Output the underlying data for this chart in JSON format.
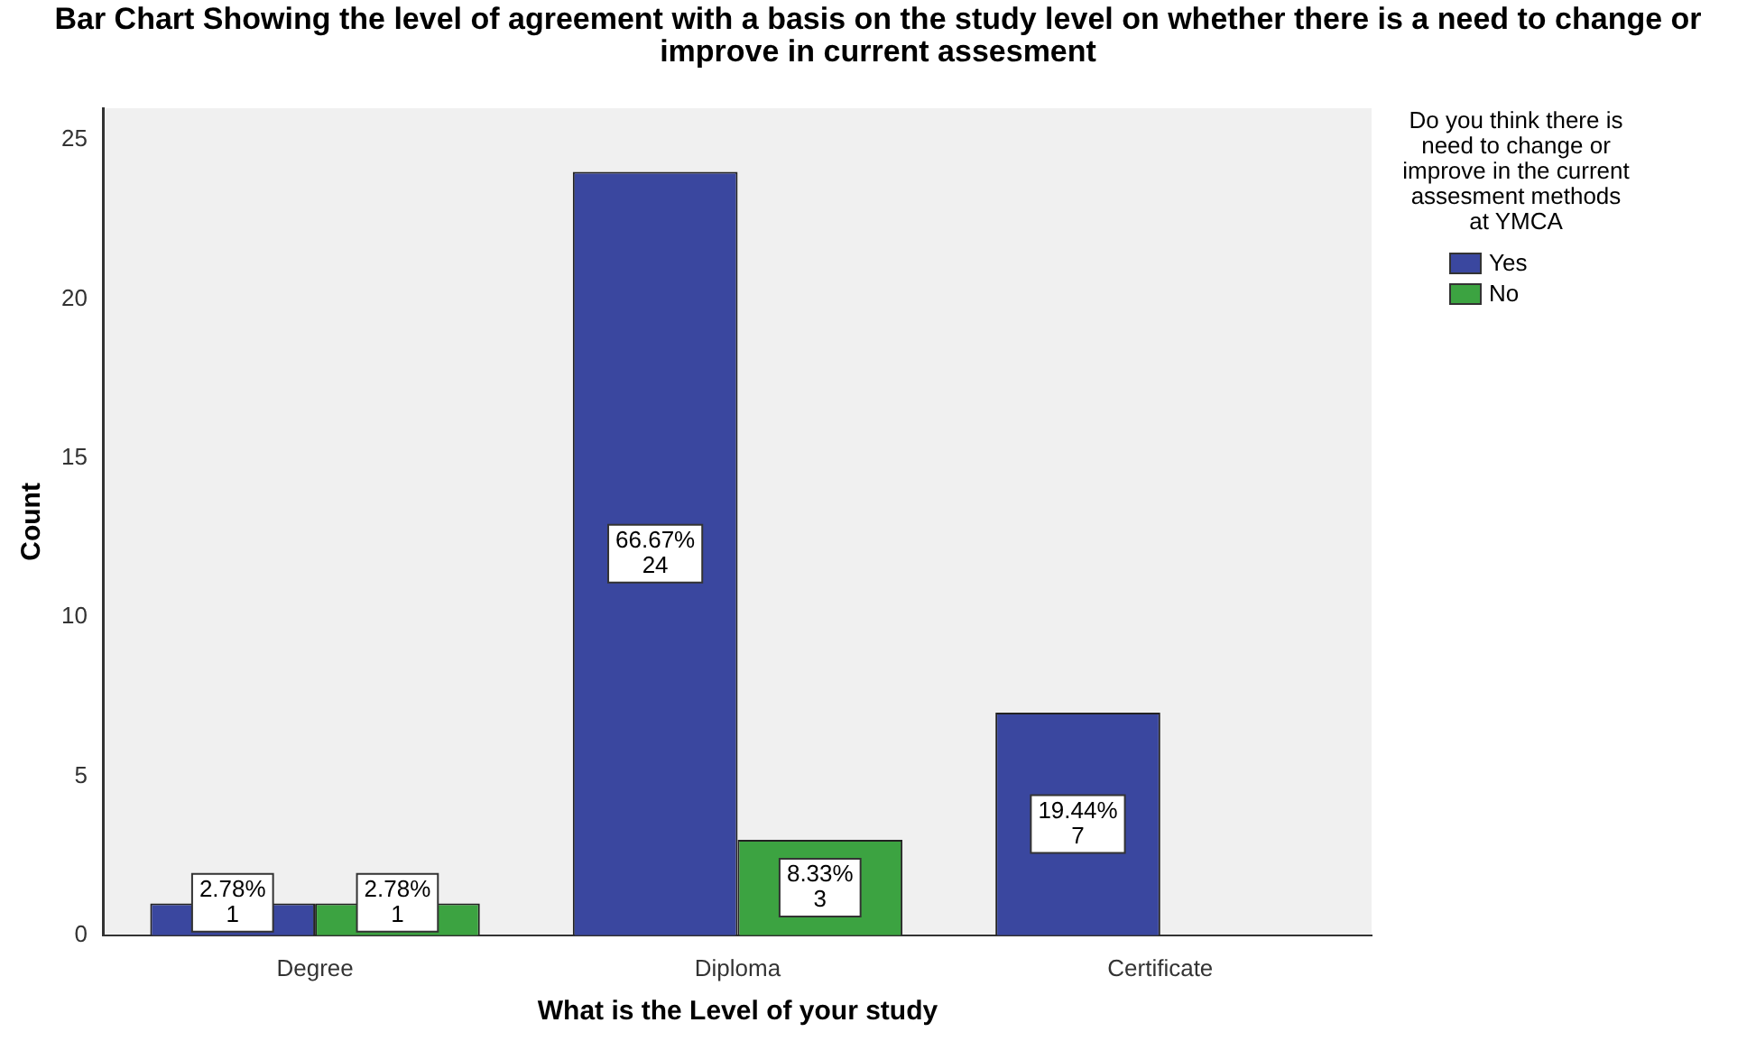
{
  "chart_data": {
    "type": "bar",
    "title": "Bar Chart Showing the level of agreement with a basis on the study level on whether there is a need to change or improve in current assesment",
    "xlabel": "What is the Level of your study",
    "ylabel": "Count",
    "legend_title": "Do you think there is need to change or improve in the current assesment methods at YMCA",
    "categories": [
      "Degree",
      "Diploma",
      "Certificate"
    ],
    "series": [
      {
        "name": "Yes",
        "color": "#3a479f",
        "values": [
          1,
          24,
          7
        ],
        "value_labels": [
          "2.78%\n1",
          "66.67%\n24",
          "19.44%\n7"
        ]
      },
      {
        "name": "No",
        "color": "#3ca341",
        "values": [
          1,
          3,
          null
        ],
        "value_labels": [
          "2.78%\n1",
          "8.33%\n3",
          null
        ]
      }
    ],
    "ylim": [
      0,
      26
    ],
    "yticks": [
      0,
      5,
      10,
      15,
      20,
      25
    ],
    "grid": false,
    "legend": "right"
  }
}
